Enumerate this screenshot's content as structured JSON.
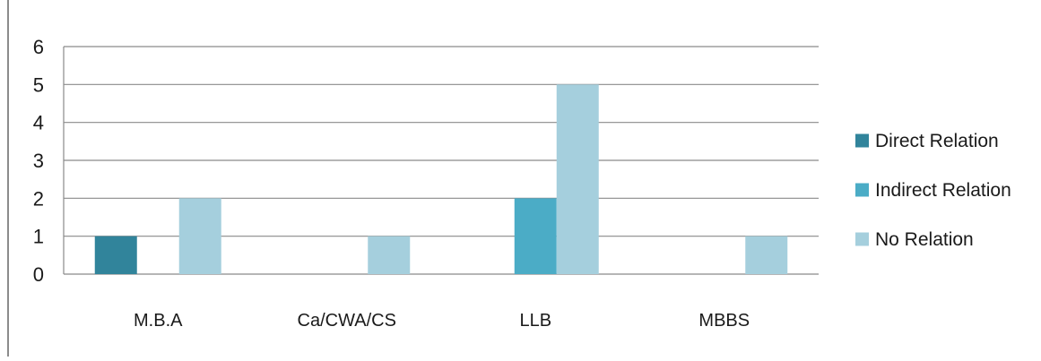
{
  "chart_data": {
    "type": "bar",
    "categories": [
      "M.B.A",
      "Ca/CWA/CS",
      "LLB",
      "MBBS"
    ],
    "series": [
      {
        "name": "Direct Relation",
        "values": [
          1,
          0,
          0,
          0
        ],
        "color": "#31849b"
      },
      {
        "name": "Indirect Relation",
        "values": [
          0,
          0,
          2,
          0
        ],
        "color": "#4bacc6"
      },
      {
        "name": "No Relation",
        "values": [
          2,
          1,
          5,
          1
        ],
        "color": "#a5cfdd"
      }
    ],
    "yticks": [
      "0",
      "1",
      "2",
      "3",
      "4",
      "5",
      "6"
    ],
    "ylim": [
      0,
      6
    ],
    "grid": true,
    "legend_position": "right",
    "title": "",
    "xlabel": "",
    "ylabel": ""
  }
}
